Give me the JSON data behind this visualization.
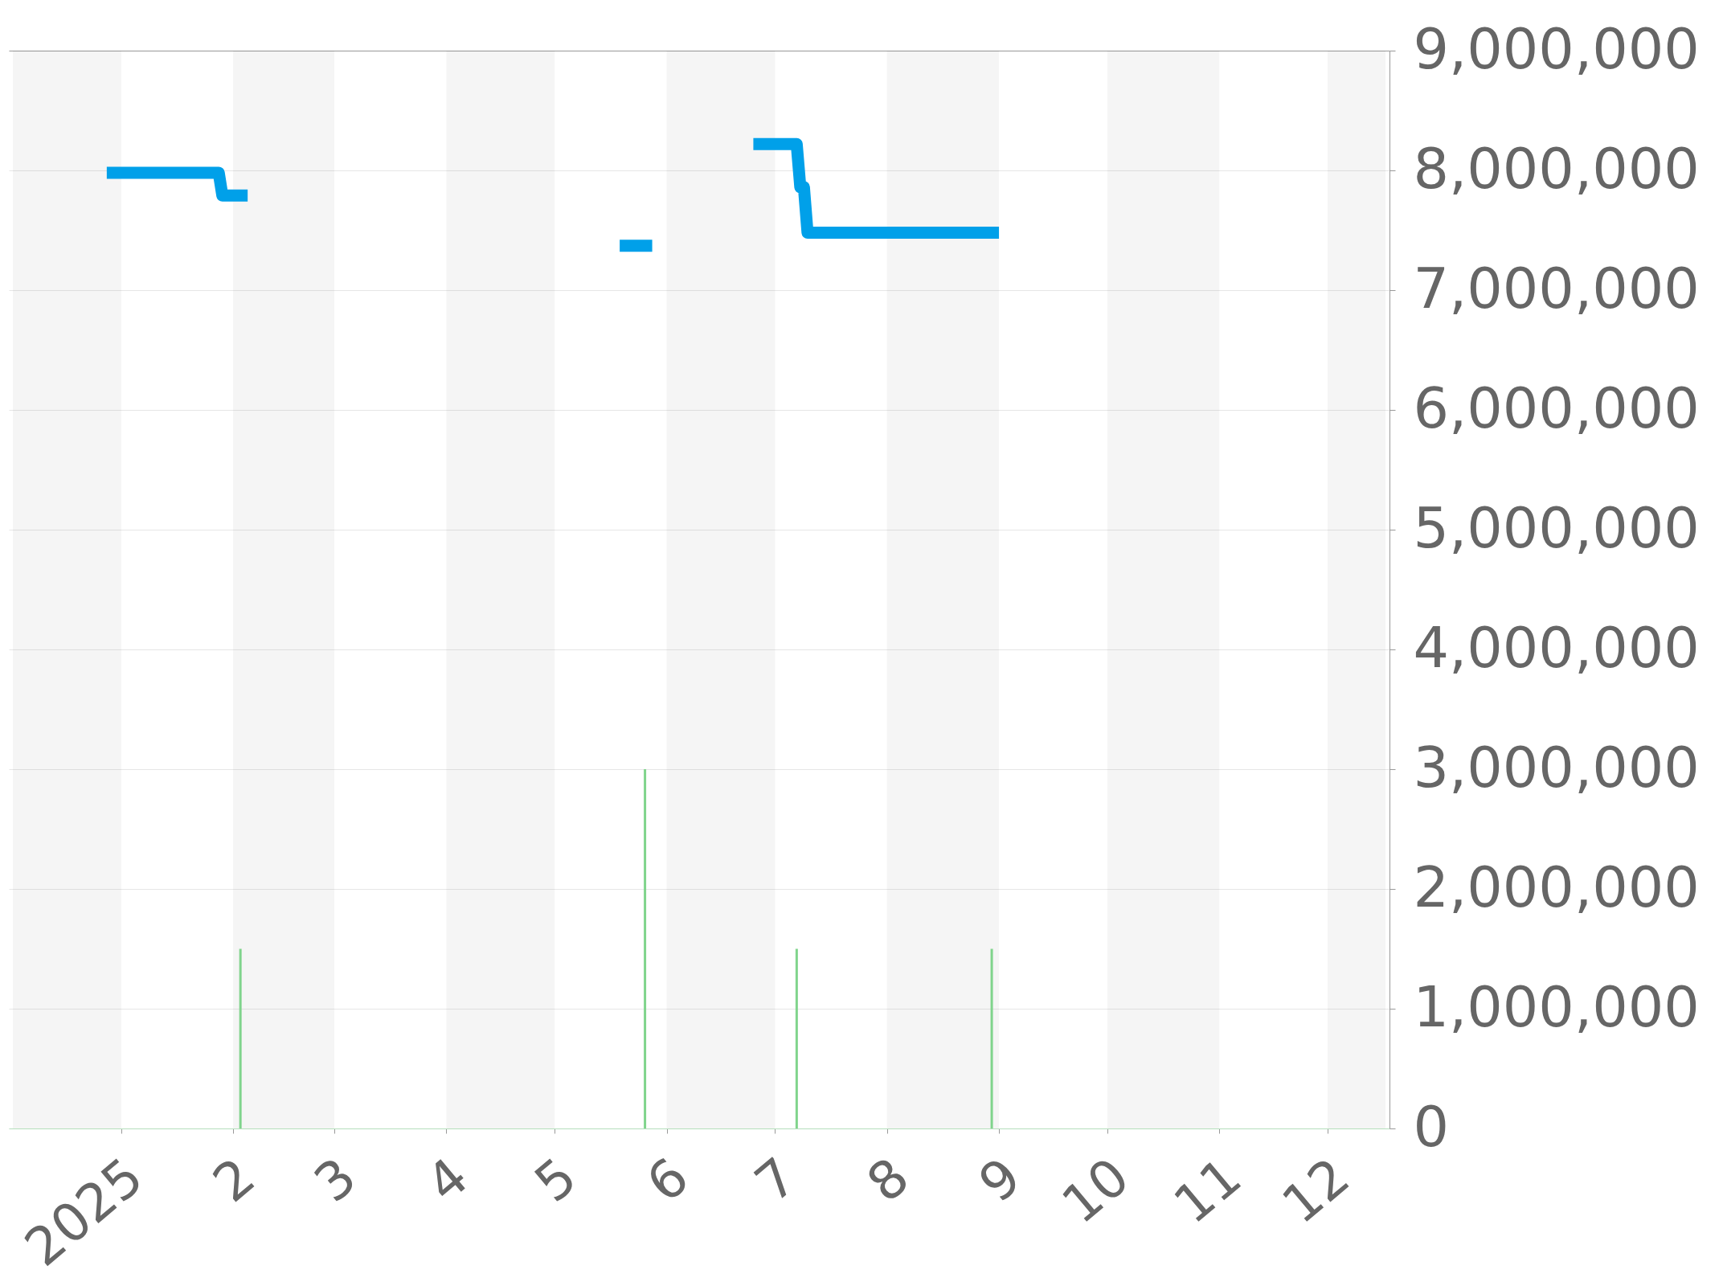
{
  "chart_data": {
    "type": "line",
    "xlim": [
      "2024-12-02",
      "2025-12-17"
    ],
    "xticks": [
      {
        "value": "2025-01-01",
        "label": "2025"
      },
      {
        "value": "2025-02-01",
        "label": "2"
      },
      {
        "value": "2025-03-01",
        "label": "3"
      },
      {
        "value": "2025-04-01",
        "label": "4"
      },
      {
        "value": "2025-05-01",
        "label": "5"
      },
      {
        "value": "2025-06-01",
        "label": "6"
      },
      {
        "value": "2025-07-01",
        "label": "7"
      },
      {
        "value": "2025-08-01",
        "label": "8"
      },
      {
        "value": "2025-09-01",
        "label": "9"
      },
      {
        "value": "2025-10-01",
        "label": "10"
      },
      {
        "value": "2025-11-01",
        "label": "11"
      },
      {
        "value": "2025-12-01",
        "label": "12"
      }
    ],
    "ylim": [
      0,
      9000000
    ],
    "yticks": [
      0,
      {
        "value": 1000000,
        "label": "1,000,000"
      },
      {
        "value": 2000000,
        "label": "2,000,000"
      },
      {
        "value": 3000000,
        "label": "3,000,000"
      },
      {
        "value": 4000000,
        "label": "4,000,000"
      },
      {
        "value": 5000000,
        "label": "5,000,000"
      },
      {
        "value": 6000000,
        "label": "6,000,000"
      },
      {
        "value": 7000000,
        "label": "7,000,000"
      },
      {
        "value": 8000000,
        "label": "8,000,000"
      },
      {
        "value": 9000000,
        "label": "9,000,000"
      }
    ],
    "grid": "y",
    "line_style": "solid",
    "bands": [
      {
        "axis": "x",
        "from": "2024-12-02",
        "to": "2025-01-01",
        "color": "#f5f5f5"
      },
      {
        "axis": "x",
        "from": "2025-02-01",
        "to": "2025-03-01",
        "color": "#f5f5f5"
      },
      {
        "axis": "x",
        "from": "2025-04-01",
        "to": "2025-05-01",
        "color": "#f5f5f5"
      },
      {
        "axis": "x",
        "from": "2025-06-01",
        "to": "2025-07-01",
        "color": "#f5f5f5"
      },
      {
        "axis": "x",
        "from": "2025-08-01",
        "to": "2025-09-01",
        "color": "#f5f5f5"
      },
      {
        "axis": "x",
        "from": "2025-10-01",
        "to": "2025-11-01",
        "color": "#f5f5f5"
      },
      {
        "axis": "x",
        "from": "2025-12-01",
        "to": "2025-12-17",
        "color": "#f5f5f5"
      }
    ],
    "series": [
      {
        "color": "#00a0e9",
        "x": [
          "2024-12-28",
          "2025-01-28",
          "2025-01-29",
          "2025-02-05",
          "2025-02-06",
          "2025-05-19",
          "2025-05-28",
          "2025-05-29",
          "2025-06-25",
          "2025-07-07",
          "2025-07-08",
          "2025-07-09",
          "2025-07-10",
          "2025-09-01"
        ],
        "values": [
          7980000,
          7980000,
          7790000,
          7790000,
          null,
          7370000,
          7370000,
          null,
          8220000,
          8220000,
          7860000,
          7860000,
          7480000,
          7480000
        ]
      },
      {
        "type": "bar",
        "color": "#80d48c",
        "x": [
          "2025-02-03",
          "2025-05-26",
          "2025-07-07",
          "2025-08-30"
        ],
        "values": [
          1500000,
          3000000,
          1500000,
          1500000
        ]
      }
    ]
  }
}
